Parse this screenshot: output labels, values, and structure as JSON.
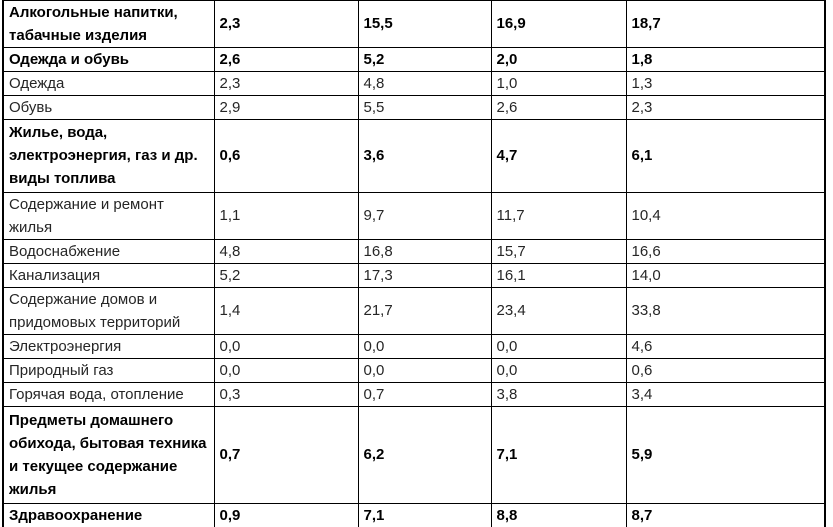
{
  "table": {
    "rows": [
      {
        "label": [
          "Алкогольные напитки,",
          "табачные изделия"
        ],
        "bold": true,
        "values": [
          "2,3",
          "15,5",
          "16,9",
          "18,7"
        ]
      },
      {
        "label": [
          "Одежда и обувь"
        ],
        "bold": true,
        "values": [
          "2,6",
          "5,2",
          "2,0",
          "1,8"
        ]
      },
      {
        "label": [
          "Одежда"
        ],
        "bold": false,
        "values": [
          "2,3",
          "4,8",
          "1,0",
          "1,3"
        ]
      },
      {
        "label": [
          "Обувь"
        ],
        "bold": false,
        "values": [
          "2,9",
          "5,5",
          "2,6",
          "2,3"
        ]
      },
      {
        "label": [
          "Жилье, вода,",
          "электроэнергия, газ и др.",
          "виды топлива"
        ],
        "bold": true,
        "values": [
          "0,6",
          "3,6",
          "4,7",
          "6,1"
        ]
      },
      {
        "label": [
          "Содержание и ремонт",
          "жилья"
        ],
        "bold": false,
        "values": [
          "1,1",
          "9,7",
          "11,7",
          "10,4"
        ]
      },
      {
        "label": [
          "Водоснабжение"
        ],
        "bold": false,
        "values": [
          "4,8",
          "16,8",
          "15,7",
          "16,6"
        ]
      },
      {
        "label": [
          "Канализация"
        ],
        "bold": false,
        "values": [
          "5,2",
          "17,3",
          "16,1",
          "14,0"
        ]
      },
      {
        "label": [
          "Содержание домов и",
          "придомовых территорий"
        ],
        "bold": false,
        "values": [
          "1,4",
          "21,7",
          "23,4",
          "33,8"
        ]
      },
      {
        "label": [
          "Электроэнергия"
        ],
        "bold": false,
        "values": [
          "0,0",
          "0,0",
          "0,0",
          "4,6"
        ]
      },
      {
        "label": [
          "Природный газ"
        ],
        "bold": false,
        "values": [
          "0,0",
          "0,0",
          "0,0",
          "0,6"
        ]
      },
      {
        "label": [
          "Горячая вода, отопление"
        ],
        "bold": false,
        "values": [
          "0,3",
          "0,7",
          "3,8",
          "3,4"
        ]
      },
      {
        "label": [
          "Предметы домашнего",
          "обихода, бытовая техника",
          "и текущее содержание",
          "жилья"
        ],
        "bold": true,
        "values": [
          "0,7",
          "6,2",
          "7,1",
          "5,9"
        ]
      },
      {
        "label": [
          "Здравоохранение"
        ],
        "bold": true,
        "values": [
          "0,9",
          "7,1",
          "8,8",
          "8,7"
        ]
      }
    ],
    "colors": {
      "border": "#000000",
      "text_regular": "#262626",
      "text_bold": "#000000",
      "background": "#ffffff"
    }
  }
}
